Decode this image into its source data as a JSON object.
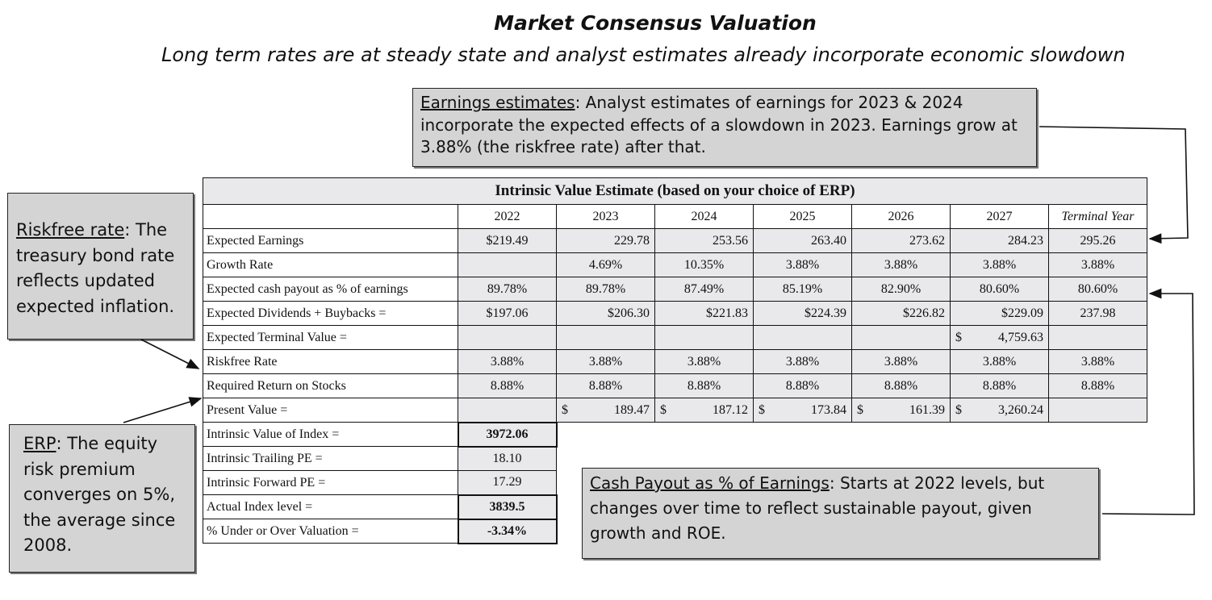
{
  "title": "Market Consensus Valuation",
  "subtitle": "Long term rates are at steady state and analyst estimates already incorporate economic slowdown",
  "callouts": {
    "earnings": {
      "head": "Earnings estimates",
      "body": ": Analyst estimates of earnings for 2023 & 2024 incorporate the expected effects of a slowdown in 2023. Earnings grow at 3.88% (the riskfree rate) after that."
    },
    "riskfree": {
      "head": "Riskfree rate",
      "body": ": The treasury bond rate reflects updated expected inflation."
    },
    "erp": {
      "head": "ERP",
      "body": ": The equity risk premium converges on 5%, the average since 2008."
    },
    "cash": {
      "head": "Cash Payout as % of Earnings",
      "body": ": Starts at 2022 levels, but changes over time to reflect sustainable payout, given growth and ROE."
    }
  },
  "table": {
    "header": "Intrinsic Value Estimate (based on your choice of ERP)",
    "columns": [
      "2022",
      "2023",
      "2024",
      "2025",
      "2026",
      "2027",
      "Terminal Year"
    ],
    "rows": [
      {
        "label": "Expected Earnings",
        "cells": [
          "$219.49",
          "229.78",
          "253.56",
          "263.40",
          "273.62",
          "284.23",
          "295.26"
        ]
      },
      {
        "label": "Growth Rate",
        "cells": [
          "",
          "4.69%",
          "10.35%",
          "3.88%",
          "3.88%",
          "3.88%",
          "3.88%"
        ]
      },
      {
        "label": "Expected cash payout as % of earnings",
        "cells": [
          "89.78%",
          "89.78%",
          "87.49%",
          "85.19%",
          "82.90%",
          "80.60%",
          "80.60%"
        ]
      },
      {
        "label": "Expected Dividends + Buybacks =",
        "cells": [
          "$197.06",
          "$206.30",
          "$221.83",
          "$224.39",
          "$226.82",
          "$229.09",
          "237.98"
        ]
      },
      {
        "label": "Expected Terminal Value =",
        "tv_sym": "$",
        "tv_val": "4,759.63"
      },
      {
        "label": "Riskfree Rate",
        "cells": [
          "3.88%",
          "3.88%",
          "3.88%",
          "3.88%",
          "3.88%",
          "3.88%",
          "3.88%"
        ]
      },
      {
        "label": "Required Return on Stocks",
        "cells": [
          "8.88%",
          "8.88%",
          "8.88%",
          "8.88%",
          "8.88%",
          "8.88%",
          "8.88%"
        ]
      },
      {
        "label": "Present Value =",
        "pv_sym": "$",
        "pv": [
          "189.47",
          "187.12",
          "173.84",
          "161.39",
          "3,260.24"
        ]
      }
    ],
    "summary": [
      {
        "label": "Intrinsic Value of Index =",
        "value": "3972.06"
      },
      {
        "label": "Intrinsic Trailing PE =",
        "value": "18.10"
      },
      {
        "label": "Intrinsic Forward PE =",
        "value": "17.29"
      },
      {
        "label": "Actual Index level =",
        "value": "3839.5"
      },
      {
        "label": "% Under or Over Valuation =",
        "value": "-3.34%"
      }
    ]
  }
}
